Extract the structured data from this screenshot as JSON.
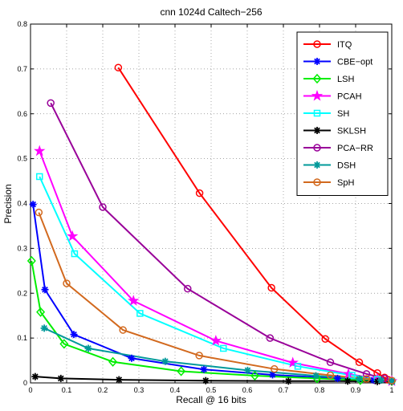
{
  "chart_data": {
    "type": "line",
    "title": "cnn 1024d Caltech−256",
    "xlabel": "Recall @ 16 bits",
    "ylabel": "Precision",
    "xlim": [
      0,
      1
    ],
    "ylim": [
      0,
      0.8
    ],
    "xticks": [
      "0",
      "0.1",
      "0.2",
      "0.3",
      "0.4",
      "0.5",
      "0.6",
      "0.7",
      "0.8",
      "0.9",
      "1"
    ],
    "yticks": [
      "0",
      "0.1",
      "0.2",
      "0.3",
      "0.4",
      "0.5",
      "0.6",
      "0.7",
      "0.8"
    ],
    "grid": true,
    "legend_position": "top-right",
    "series": [
      {
        "name": "ITQ",
        "color": "#ff0000",
        "marker": "circle",
        "points": [
          [
            0.243,
            0.703
          ],
          [
            0.468,
            0.423
          ],
          [
            0.667,
            0.212
          ],
          [
            0.816,
            0.098
          ],
          [
            0.91,
            0.046
          ],
          [
            0.96,
            0.022
          ],
          [
            0.98,
            0.012
          ],
          [
            0.99,
            0.007
          ],
          [
            1.0,
            0.005
          ]
        ]
      },
      {
        "name": "CBE−opt",
        "color": "#0000ff",
        "marker": "star",
        "points": [
          [
            0.007,
            0.398
          ],
          [
            0.04,
            0.208
          ],
          [
            0.12,
            0.108
          ],
          [
            0.28,
            0.055
          ],
          [
            0.48,
            0.03
          ],
          [
            0.67,
            0.018
          ],
          [
            0.85,
            0.01
          ],
          [
            0.95,
            0.006
          ],
          [
            1.0,
            0.004
          ]
        ]
      },
      {
        "name": "LSH",
        "color": "#00ee00",
        "marker": "diamond",
        "points": [
          [
            0.003,
            0.272
          ],
          [
            0.028,
            0.158
          ],
          [
            0.093,
            0.087
          ],
          [
            0.228,
            0.047
          ],
          [
            0.417,
            0.026
          ],
          [
            0.621,
            0.016
          ],
          [
            0.793,
            0.01
          ],
          [
            0.913,
            0.006
          ],
          [
            1.0,
            0.004
          ]
        ]
      },
      {
        "name": "PCAH",
        "color": "#ff00ff",
        "marker": "pentagram",
        "points": [
          [
            0.025,
            0.517
          ],
          [
            0.116,
            0.327
          ],
          [
            0.285,
            0.183
          ],
          [
            0.513,
            0.094
          ],
          [
            0.726,
            0.045
          ],
          [
            0.88,
            0.02
          ],
          [
            0.96,
            0.009
          ],
          [
            1.0,
            0.004
          ]
        ]
      },
      {
        "name": "SH",
        "color": "#00ffff",
        "marker": "square",
        "points": [
          [
            0.025,
            0.46
          ],
          [
            0.122,
            0.288
          ],
          [
            0.303,
            0.155
          ],
          [
            0.534,
            0.077
          ],
          [
            0.74,
            0.037
          ],
          [
            0.89,
            0.017
          ],
          [
            0.96,
            0.008
          ],
          [
            1.0,
            0.004
          ]
        ]
      },
      {
        "name": "SKLSH",
        "color": "#000000",
        "marker": "star",
        "points": [
          [
            0.013,
            0.014
          ],
          [
            0.084,
            0.01
          ],
          [
            0.245,
            0.007
          ],
          [
            0.485,
            0.005
          ],
          [
            0.714,
            0.004
          ],
          [
            0.878,
            0.004
          ],
          [
            0.96,
            0.003
          ],
          [
            1.0,
            0.003
          ]
        ]
      },
      {
        "name": "PCA−RR",
        "color": "#990099",
        "marker": "circle",
        "points": [
          [
            0.056,
            0.624
          ],
          [
            0.2,
            0.392
          ],
          [
            0.435,
            0.21
          ],
          [
            0.663,
            0.1
          ],
          [
            0.83,
            0.046
          ],
          [
            0.93,
            0.02
          ],
          [
            0.98,
            0.01
          ],
          [
            1.0,
            0.005
          ]
        ]
      },
      {
        "name": "DSH",
        "color": "#00999a",
        "marker": "star",
        "points": [
          [
            0.038,
            0.122
          ],
          [
            0.16,
            0.077
          ],
          [
            0.373,
            0.048
          ],
          [
            0.601,
            0.028
          ],
          [
            0.79,
            0.016
          ],
          [
            0.91,
            0.009
          ],
          [
            0.97,
            0.006
          ],
          [
            1.0,
            0.004
          ]
        ]
      },
      {
        "name": "SpH",
        "color": "#d2691e",
        "marker": "circle",
        "points": [
          [
            0.023,
            0.38
          ],
          [
            0.1,
            0.222
          ],
          [
            0.256,
            0.118
          ],
          [
            0.467,
            0.061
          ],
          [
            0.675,
            0.031
          ],
          [
            0.83,
            0.017
          ],
          [
            0.93,
            0.009
          ],
          [
            1.0,
            0.005
          ]
        ]
      }
    ]
  }
}
